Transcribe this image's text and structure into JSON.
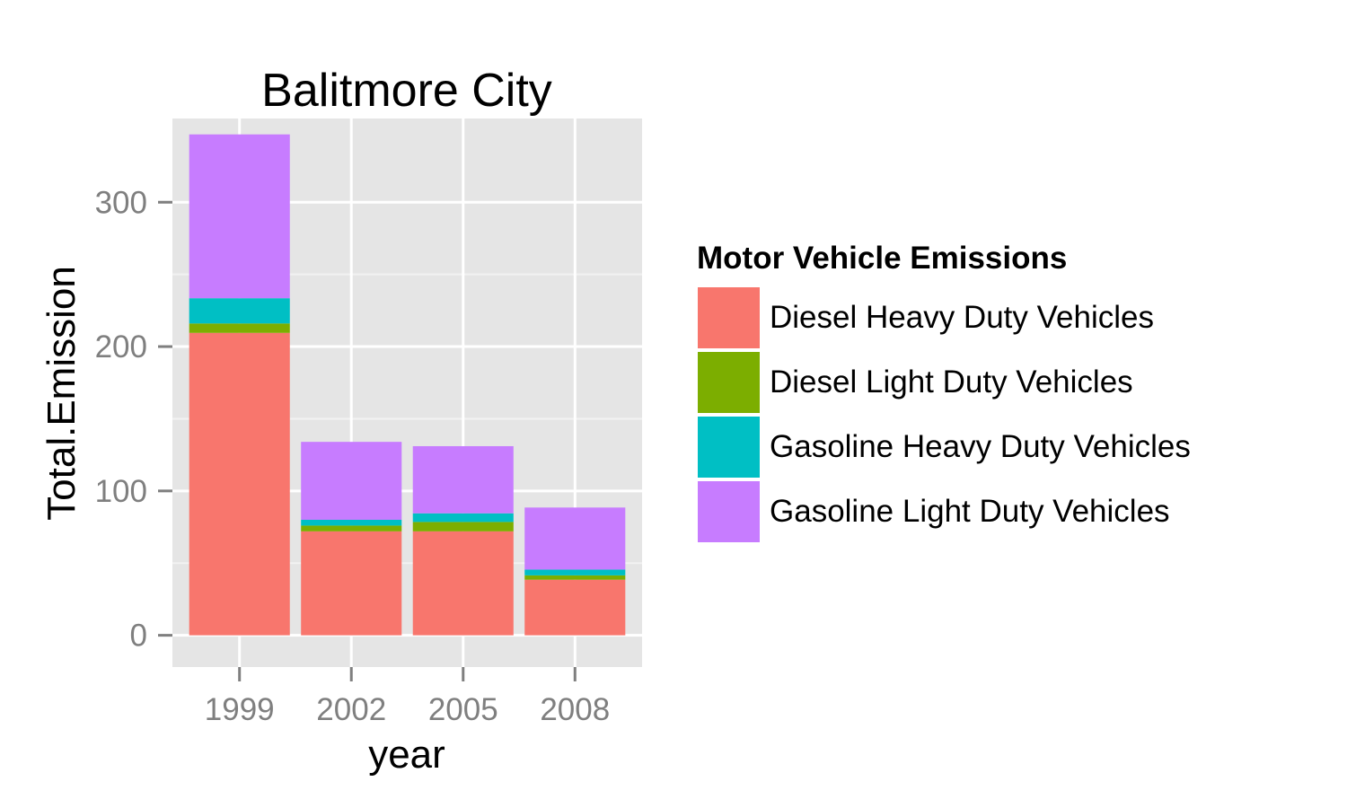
{
  "chart_data": {
    "type": "bar",
    "stacked": true,
    "title": "Balitmore City",
    "xlabel": "year",
    "ylabel": "Total.Emission",
    "categories": [
      "1999",
      "2002",
      "2005",
      "2008"
    ],
    "ylim": [
      -22,
      358
    ],
    "yticks": [
      0,
      100,
      200,
      300
    ],
    "ytick_labels": [
      "0",
      "100",
      "200",
      "300"
    ],
    "grid": true,
    "legend": {
      "title": "Motor Vehicle Emissions",
      "position": "right"
    },
    "series": [
      {
        "name": "Diesel Heavy Duty Vehicles",
        "color": "#F8766D",
        "values": [
          209.5,
          72.0,
          72.0,
          38.5
        ]
      },
      {
        "name": "Diesel Light Duty Vehicles",
        "color": "#7CAE00",
        "values": [
          6.5,
          4.0,
          6.5,
          3.0
        ]
      },
      {
        "name": "Gasoline Heavy Duty Vehicles",
        "color": "#00BFC4",
        "values": [
          17.5,
          4.0,
          6.0,
          4.0
        ]
      },
      {
        "name": "Gasoline Light Duty Vehicles",
        "color": "#C77CFF",
        "values": [
          113.5,
          54.0,
          46.5,
          43.0
        ]
      }
    ]
  },
  "colors": {
    "panel_background": "#E5E5E5",
    "grid_major": "#FFFFFF",
    "grid_minor": "#F2F2F2",
    "tick_label": "#7F7F7F"
  }
}
